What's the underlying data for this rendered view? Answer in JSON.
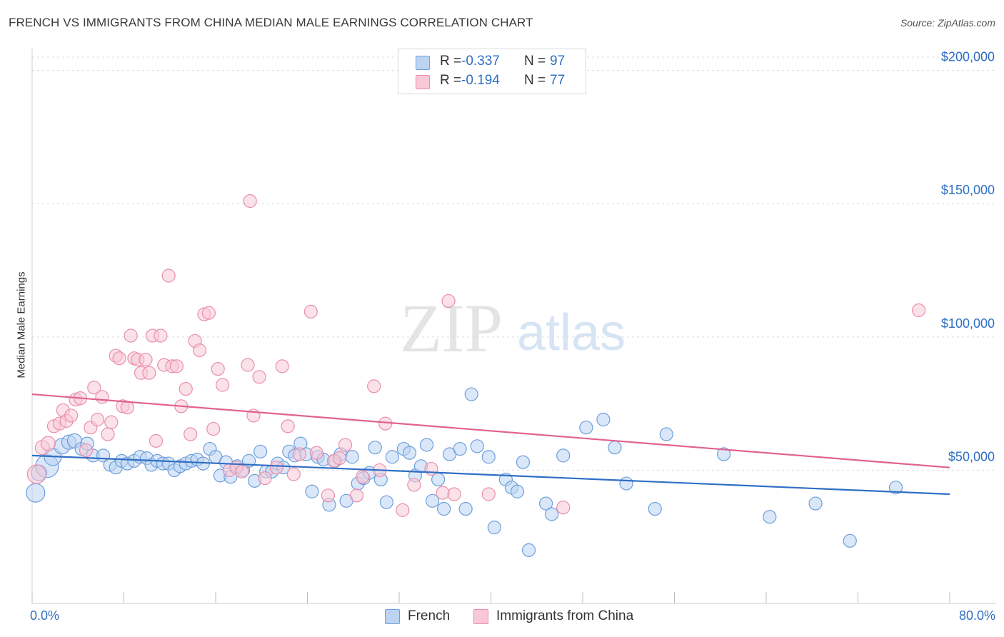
{
  "title": "FRENCH VS IMMIGRANTS FROM CHINA MEDIAN MALE EARNINGS CORRELATION CHART",
  "source": "Source: ZipAtlas.com",
  "watermark": {
    "zip": "ZIP",
    "atlas": "atlas"
  },
  "legend": {
    "series": [
      {
        "r_label": "R =",
        "r_value": "-0.337",
        "n_label": "N =",
        "n_value": "97"
      },
      {
        "r_label": "R =",
        "r_value": "-0.194",
        "n_label": "N =",
        "n_value": "77"
      }
    ]
  },
  "colors": {
    "french_fill": "#bcd4f2",
    "french_stroke": "#6d9fdc",
    "french_line": "#2f6fc4",
    "china_fill": "#f8c8d6",
    "china_stroke": "#e98fab",
    "china_line": "#e0628f",
    "axis_label": "#2f6fc4",
    "grid": "#dcdcdc"
  },
  "chart_data": {
    "type": "scatter",
    "title": "FRENCH VS IMMIGRANTS FROM CHINA MEDIAN MALE EARNINGS CORRELATION CHART",
    "xlabel": "",
    "ylabel": "Median Male Earnings",
    "xlim": [
      0,
      80
    ],
    "ylim": [
      0,
      205000
    ],
    "x_tick_labels": [
      "0.0%",
      "80.0%"
    ],
    "y_tick_values": [
      50000,
      100000,
      150000,
      200000
    ],
    "y_tick_labels": [
      "$50,000",
      "$100,000",
      "$150,000",
      "$200,000"
    ],
    "grid": "horizontal dashed",
    "legend_position": "top-center",
    "series": [
      {
        "name": "French",
        "r": -0.337,
        "n": 97,
        "trend": {
          "x": [
            0,
            80
          ],
          "y": [
            55500,
            41000
          ]
        },
        "points": [
          {
            "x": 0.3,
            "y": 41500,
            "s": 13
          },
          {
            "x": 0.6,
            "y": 49000,
            "s": 11
          },
          {
            "x": 1.3,
            "y": 51500,
            "s": 16
          },
          {
            "x": 1.8,
            "y": 55000,
            "s": 12
          },
          {
            "x": 2.6,
            "y": 59000,
            "s": 11
          },
          {
            "x": 3.2,
            "y": 60500,
            "s": 10
          },
          {
            "x": 3.7,
            "y": 61000,
            "s": 10
          },
          {
            "x": 4.3,
            "y": 58000,
            "s": 9
          },
          {
            "x": 4.8,
            "y": 60000,
            "s": 9
          },
          {
            "x": 5.3,
            "y": 55500,
            "s": 9
          },
          {
            "x": 6.2,
            "y": 55500,
            "s": 9
          },
          {
            "x": 6.8,
            "y": 52000,
            "s": 9
          },
          {
            "x": 7.3,
            "y": 51000,
            "s": 9
          },
          {
            "x": 7.8,
            "y": 53500,
            "s": 9
          },
          {
            "x": 8.3,
            "y": 52500,
            "s": 9
          },
          {
            "x": 8.9,
            "y": 53500,
            "s": 9
          },
          {
            "x": 9.4,
            "y": 55000,
            "s": 9
          },
          {
            "x": 10.0,
            "y": 54500,
            "s": 9
          },
          {
            "x": 10.4,
            "y": 52000,
            "s": 9
          },
          {
            "x": 10.9,
            "y": 53500,
            "s": 9
          },
          {
            "x": 11.4,
            "y": 52500,
            "s": 9
          },
          {
            "x": 11.9,
            "y": 52500,
            "s": 9
          },
          {
            "x": 12.4,
            "y": 50000,
            "s": 9
          },
          {
            "x": 12.9,
            "y": 51500,
            "s": 9
          },
          {
            "x": 13.4,
            "y": 52500,
            "s": 9
          },
          {
            "x": 13.9,
            "y": 53500,
            "s": 9
          },
          {
            "x": 14.4,
            "y": 54000,
            "s": 9
          },
          {
            "x": 14.9,
            "y": 52500,
            "s": 9
          },
          {
            "x": 15.5,
            "y": 58000,
            "s": 9
          },
          {
            "x": 16.0,
            "y": 55000,
            "s": 9
          },
          {
            "x": 16.4,
            "y": 48000,
            "s": 9
          },
          {
            "x": 16.9,
            "y": 53000,
            "s": 9
          },
          {
            "x": 17.3,
            "y": 47500,
            "s": 9
          },
          {
            "x": 17.9,
            "y": 51500,
            "s": 9
          },
          {
            "x": 18.4,
            "y": 50000,
            "s": 9
          },
          {
            "x": 18.9,
            "y": 53500,
            "s": 9
          },
          {
            "x": 19.4,
            "y": 46000,
            "s": 9
          },
          {
            "x": 19.9,
            "y": 57000,
            "s": 9
          },
          {
            "x": 20.4,
            "y": 49500,
            "s": 9
          },
          {
            "x": 20.9,
            "y": 49500,
            "s": 9
          },
          {
            "x": 21.4,
            "y": 52500,
            "s": 9
          },
          {
            "x": 21.9,
            "y": 51000,
            "s": 9
          },
          {
            "x": 22.4,
            "y": 57000,
            "s": 9
          },
          {
            "x": 22.9,
            "y": 55500,
            "s": 9
          },
          {
            "x": 23.4,
            "y": 60000,
            "s": 9
          },
          {
            "x": 23.9,
            "y": 56000,
            "s": 9
          },
          {
            "x": 24.4,
            "y": 42000,
            "s": 9
          },
          {
            "x": 24.9,
            "y": 55000,
            "s": 9
          },
          {
            "x": 25.4,
            "y": 54000,
            "s": 9
          },
          {
            "x": 25.9,
            "y": 37000,
            "s": 9
          },
          {
            "x": 26.4,
            "y": 53500,
            "s": 9
          },
          {
            "x": 26.9,
            "y": 56000,
            "s": 9
          },
          {
            "x": 27.4,
            "y": 38500,
            "s": 9
          },
          {
            "x": 27.9,
            "y": 55000,
            "s": 9
          },
          {
            "x": 28.4,
            "y": 45000,
            "s": 9
          },
          {
            "x": 28.9,
            "y": 47000,
            "s": 9
          },
          {
            "x": 29.4,
            "y": 49000,
            "s": 9
          },
          {
            "x": 29.9,
            "y": 58500,
            "s": 9
          },
          {
            "x": 30.4,
            "y": 46500,
            "s": 9
          },
          {
            "x": 30.9,
            "y": 38000,
            "s": 9
          },
          {
            "x": 31.4,
            "y": 55000,
            "s": 9
          },
          {
            "x": 32.4,
            "y": 58000,
            "s": 9
          },
          {
            "x": 32.9,
            "y": 56500,
            "s": 9
          },
          {
            "x": 33.4,
            "y": 48000,
            "s": 9
          },
          {
            "x": 33.9,
            "y": 51500,
            "s": 9
          },
          {
            "x": 34.4,
            "y": 59500,
            "s": 9
          },
          {
            "x": 34.9,
            "y": 38500,
            "s": 9
          },
          {
            "x": 35.4,
            "y": 46500,
            "s": 9
          },
          {
            "x": 35.9,
            "y": 35500,
            "s": 9
          },
          {
            "x": 36.4,
            "y": 56000,
            "s": 9
          },
          {
            "x": 37.3,
            "y": 58000,
            "s": 9
          },
          {
            "x": 37.8,
            "y": 35500,
            "s": 9
          },
          {
            "x": 38.3,
            "y": 78500,
            "s": 9
          },
          {
            "x": 38.8,
            "y": 59000,
            "s": 9
          },
          {
            "x": 39.8,
            "y": 55000,
            "s": 9
          },
          {
            "x": 40.3,
            "y": 28500,
            "s": 9
          },
          {
            "x": 41.3,
            "y": 46500,
            "s": 9
          },
          {
            "x": 41.8,
            "y": 43500,
            "s": 9
          },
          {
            "x": 42.3,
            "y": 42000,
            "s": 9
          },
          {
            "x": 42.8,
            "y": 53000,
            "s": 9
          },
          {
            "x": 43.3,
            "y": 20000,
            "s": 9
          },
          {
            "x": 44.8,
            "y": 37500,
            "s": 9
          },
          {
            "x": 45.3,
            "y": 33500,
            "s": 9
          },
          {
            "x": 46.3,
            "y": 55500,
            "s": 9
          },
          {
            "x": 48.3,
            "y": 66000,
            "s": 9
          },
          {
            "x": 49.8,
            "y": 69000,
            "s": 9
          },
          {
            "x": 50.8,
            "y": 58500,
            "s": 9
          },
          {
            "x": 51.8,
            "y": 45000,
            "s": 9
          },
          {
            "x": 54.3,
            "y": 35500,
            "s": 9
          },
          {
            "x": 55.3,
            "y": 63500,
            "s": 9
          },
          {
            "x": 60.3,
            "y": 56000,
            "s": 9
          },
          {
            "x": 64.3,
            "y": 32500,
            "s": 9
          },
          {
            "x": 68.3,
            "y": 37500,
            "s": 9
          },
          {
            "x": 71.3,
            "y": 23500,
            "s": 9
          },
          {
            "x": 75.3,
            "y": 43500,
            "s": 9
          }
        ]
      },
      {
        "name": "Immigrants from China",
        "r": -0.194,
        "n": 77,
        "trend": {
          "x": [
            0,
            80
          ],
          "y": [
            78500,
            51000
          ]
        },
        "points": [
          {
            "x": 0.4,
            "y": 48500,
            "s": 13
          },
          {
            "x": 0.9,
            "y": 58500,
            "s": 10
          },
          {
            "x": 1.4,
            "y": 60000,
            "s": 10
          },
          {
            "x": 1.9,
            "y": 66500,
            "s": 9
          },
          {
            "x": 2.4,
            "y": 67500,
            "s": 9
          },
          {
            "x": 2.7,
            "y": 72500,
            "s": 9
          },
          {
            "x": 3.0,
            "y": 68500,
            "s": 9
          },
          {
            "x": 3.4,
            "y": 70500,
            "s": 9
          },
          {
            "x": 3.8,
            "y": 76500,
            "s": 9
          },
          {
            "x": 4.2,
            "y": 77000,
            "s": 9
          },
          {
            "x": 4.7,
            "y": 57500,
            "s": 9
          },
          {
            "x": 5.1,
            "y": 66000,
            "s": 9
          },
          {
            "x": 5.4,
            "y": 81000,
            "s": 9
          },
          {
            "x": 5.7,
            "y": 69000,
            "s": 9
          },
          {
            "x": 6.1,
            "y": 77500,
            "s": 9
          },
          {
            "x": 6.6,
            "y": 63500,
            "s": 9
          },
          {
            "x": 6.9,
            "y": 68000,
            "s": 9
          },
          {
            "x": 7.3,
            "y": 93000,
            "s": 9
          },
          {
            "x": 7.6,
            "y": 92000,
            "s": 9
          },
          {
            "x": 7.9,
            "y": 74000,
            "s": 9
          },
          {
            "x": 8.3,
            "y": 73500,
            "s": 9
          },
          {
            "x": 8.6,
            "y": 100500,
            "s": 9
          },
          {
            "x": 8.9,
            "y": 92000,
            "s": 9
          },
          {
            "x": 9.2,
            "y": 91500,
            "s": 9
          },
          {
            "x": 9.5,
            "y": 86500,
            "s": 9
          },
          {
            "x": 9.9,
            "y": 91500,
            "s": 9
          },
          {
            "x": 10.2,
            "y": 86500,
            "s": 9
          },
          {
            "x": 10.5,
            "y": 100500,
            "s": 9
          },
          {
            "x": 10.8,
            "y": 61000,
            "s": 9
          },
          {
            "x": 11.2,
            "y": 100500,
            "s": 9
          },
          {
            "x": 11.5,
            "y": 89500,
            "s": 9
          },
          {
            "x": 11.9,
            "y": 123000,
            "s": 9
          },
          {
            "x": 12.2,
            "y": 89000,
            "s": 9
          },
          {
            "x": 12.6,
            "y": 89000,
            "s": 9
          },
          {
            "x": 13.0,
            "y": 74000,
            "s": 9
          },
          {
            "x": 13.4,
            "y": 80500,
            "s": 9
          },
          {
            "x": 13.8,
            "y": 63500,
            "s": 9
          },
          {
            "x": 14.2,
            "y": 98500,
            "s": 9
          },
          {
            "x": 14.6,
            "y": 95000,
            "s": 9
          },
          {
            "x": 15.0,
            "y": 108500,
            "s": 9
          },
          {
            "x": 15.4,
            "y": 109000,
            "s": 9
          },
          {
            "x": 15.8,
            "y": 65500,
            "s": 9
          },
          {
            "x": 16.2,
            "y": 88000,
            "s": 9
          },
          {
            "x": 16.6,
            "y": 82000,
            "s": 9
          },
          {
            "x": 17.2,
            "y": 50000,
            "s": 9
          },
          {
            "x": 17.8,
            "y": 51000,
            "s": 9
          },
          {
            "x": 18.3,
            "y": 49500,
            "s": 9
          },
          {
            "x": 18.8,
            "y": 89500,
            "s": 9
          },
          {
            "x": 19.3,
            "y": 70500,
            "s": 9
          },
          {
            "x": 19.8,
            "y": 85000,
            "s": 9
          },
          {
            "x": 19.0,
            "y": 151000,
            "s": 9
          },
          {
            "x": 20.3,
            "y": 47000,
            "s": 9
          },
          {
            "x": 21.3,
            "y": 51000,
            "s": 9
          },
          {
            "x": 21.8,
            "y": 89000,
            "s": 9
          },
          {
            "x": 22.3,
            "y": 66500,
            "s": 9
          },
          {
            "x": 22.8,
            "y": 48500,
            "s": 9
          },
          {
            "x": 23.3,
            "y": 56000,
            "s": 9
          },
          {
            "x": 24.3,
            "y": 109500,
            "s": 9
          },
          {
            "x": 24.8,
            "y": 56500,
            "s": 9
          },
          {
            "x": 25.8,
            "y": 40500,
            "s": 9
          },
          {
            "x": 26.3,
            "y": 53500,
            "s": 9
          },
          {
            "x": 26.8,
            "y": 54500,
            "s": 9
          },
          {
            "x": 27.3,
            "y": 59500,
            "s": 9
          },
          {
            "x": 28.3,
            "y": 40500,
            "s": 9
          },
          {
            "x": 28.8,
            "y": 47500,
            "s": 9
          },
          {
            "x": 29.8,
            "y": 81500,
            "s": 9
          },
          {
            "x": 30.8,
            "y": 67500,
            "s": 9
          },
          {
            "x": 30.3,
            "y": 50000,
            "s": 9
          },
          {
            "x": 32.3,
            "y": 35000,
            "s": 9
          },
          {
            "x": 33.3,
            "y": 44500,
            "s": 9
          },
          {
            "x": 34.8,
            "y": 50500,
            "s": 9
          },
          {
            "x": 35.8,
            "y": 41500,
            "s": 9
          },
          {
            "x": 36.3,
            "y": 113500,
            "s": 9
          },
          {
            "x": 36.8,
            "y": 41000,
            "s": 9
          },
          {
            "x": 39.8,
            "y": 41000,
            "s": 9
          },
          {
            "x": 46.3,
            "y": 36000,
            "s": 9
          },
          {
            "x": 77.3,
            "y": 110000,
            "s": 9
          }
        ]
      }
    ]
  }
}
